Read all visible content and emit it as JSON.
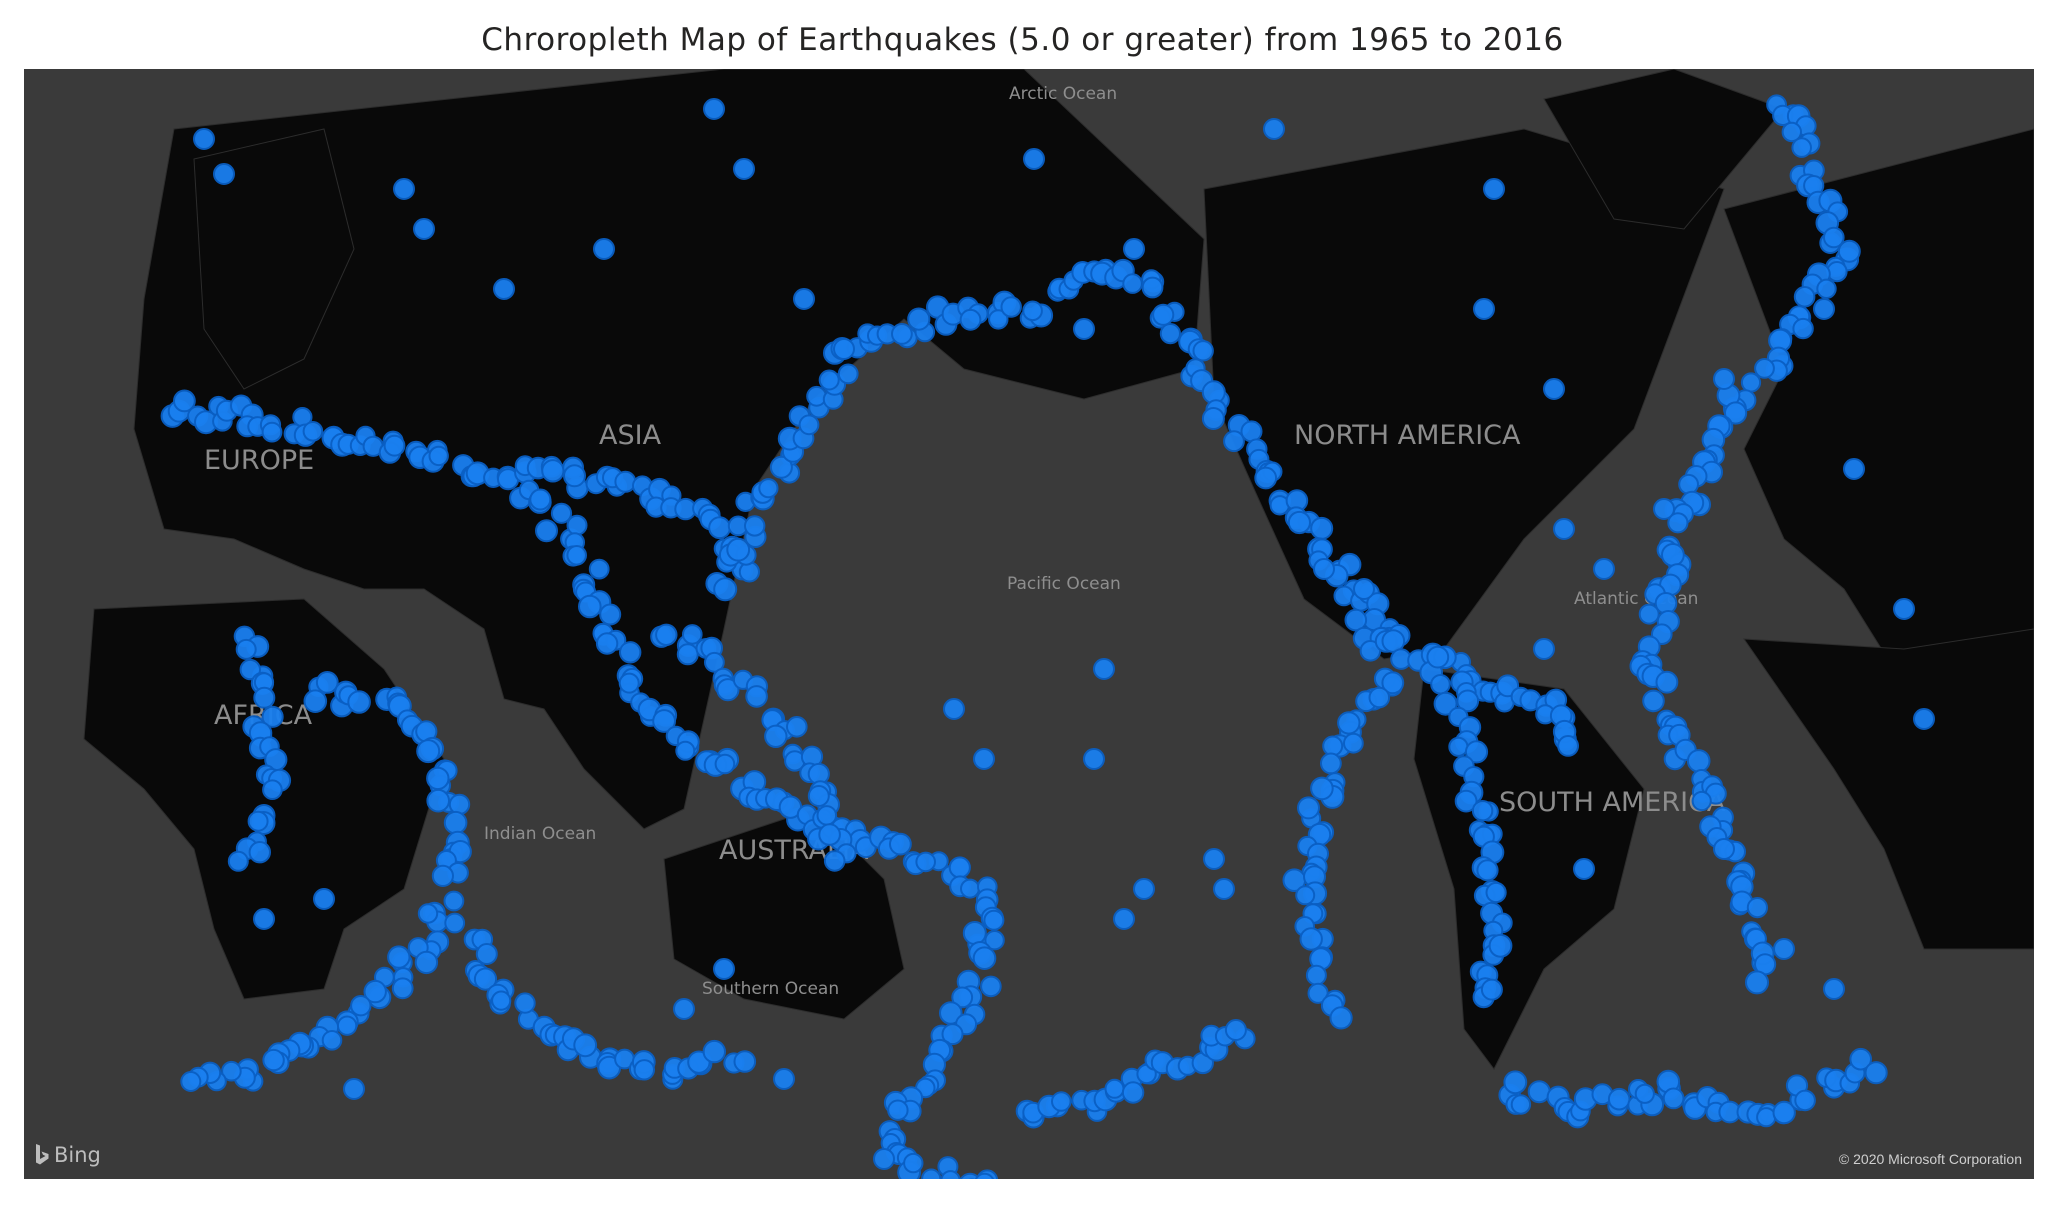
{
  "title": "Chroropleth Map of Earthquakes (5.0 or greater) from 1965 to 2016",
  "map": {
    "provider_logo": "Bing",
    "copyright": "© 2020 Microsoft Corporation",
    "continent_labels": [
      "EUROPE",
      "ASIA",
      "AFRICA",
      "AUSTRALIA",
      "NORTH AMERICA",
      "SOUTH AMERICA"
    ],
    "ocean_labels": [
      "Arctic Ocean",
      "Pacific Ocean",
      "Indian Ocean",
      "Southern Ocean",
      "Atlantic Ocean"
    ],
    "colors": {
      "marker": "#1a80f0",
      "marker_outline": "#0a5fc4",
      "land": "#090909",
      "water": "#3a3a3a"
    },
    "marker_icon": "filled-circle"
  }
}
